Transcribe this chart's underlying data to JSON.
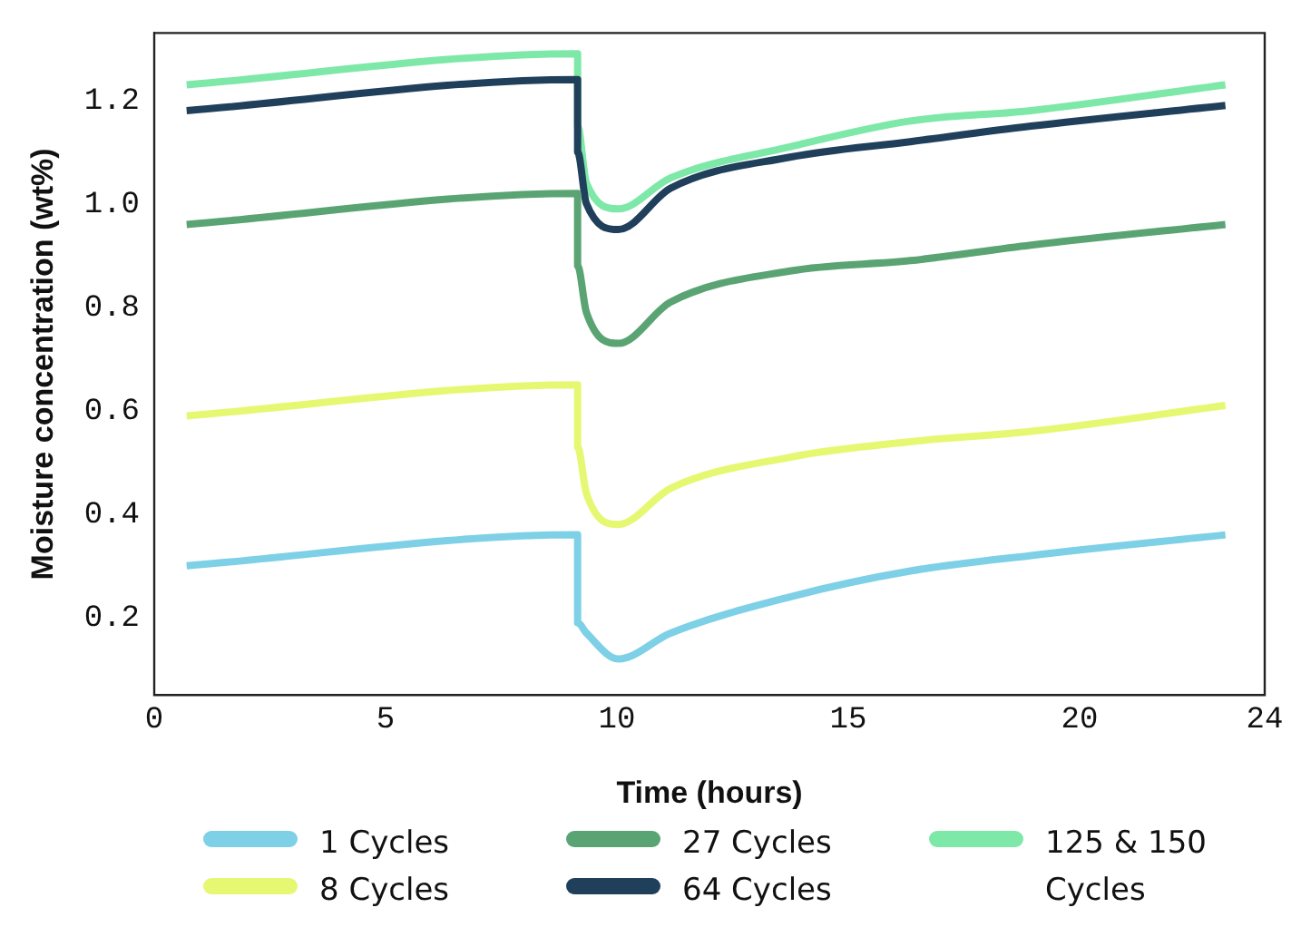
{
  "chart_data": {
    "type": "line",
    "xlabel": "Time (hours)",
    "ylabel": "Moisture concentration (wt%)",
    "x": [
      0.7,
      9.15,
      9.15,
      9.34,
      10.03,
      11.16,
      13.74,
      16.34,
      18.95,
      23.15
    ],
    "series": [
      {
        "name": "1 Cycles",
        "color": "#7dd0e6",
        "values": [
          0.3,
          0.36,
          0.19,
          0.17,
          0.12,
          0.17,
          0.24,
          0.29,
          0.32,
          0.36
        ]
      },
      {
        "name": "8 Cycles",
        "color": "#e6f872",
        "values": [
          0.59,
          0.65,
          0.53,
          0.44,
          0.38,
          0.45,
          0.51,
          0.54,
          0.56,
          0.61
        ]
      },
      {
        "name": "27 Cycles",
        "color": "#5aa474",
        "values": [
          0.96,
          1.02,
          0.88,
          0.79,
          0.73,
          0.81,
          0.87,
          0.89,
          0.92,
          0.96
        ]
      },
      {
        "name": "64 Cycles",
        "color": "#1f3f5b",
        "values": [
          1.18,
          1.24,
          1.1,
          1.0,
          0.95,
          1.03,
          1.09,
          1.12,
          1.15,
          1.19
        ]
      },
      {
        "name": "125 & 150 Cycles",
        "color": "#7de8a8",
        "values": [
          1.23,
          1.29,
          1.15,
          1.04,
          0.99,
          1.05,
          1.11,
          1.16,
          1.18,
          1.23
        ]
      }
    ],
    "xlim": [
      0,
      24
    ],
    "xticks": [
      0,
      5,
      10,
      15,
      20,
      24
    ],
    "ylim": [
      0.05,
      1.33
    ],
    "yticks": [
      0.2,
      0.4,
      0.6,
      0.8,
      {
        "value": 1,
        "label": "1.0"
      },
      1.2
    ],
    "grid": false,
    "legend": "bottom",
    "marker": "none",
    "line_style": "solid"
  }
}
